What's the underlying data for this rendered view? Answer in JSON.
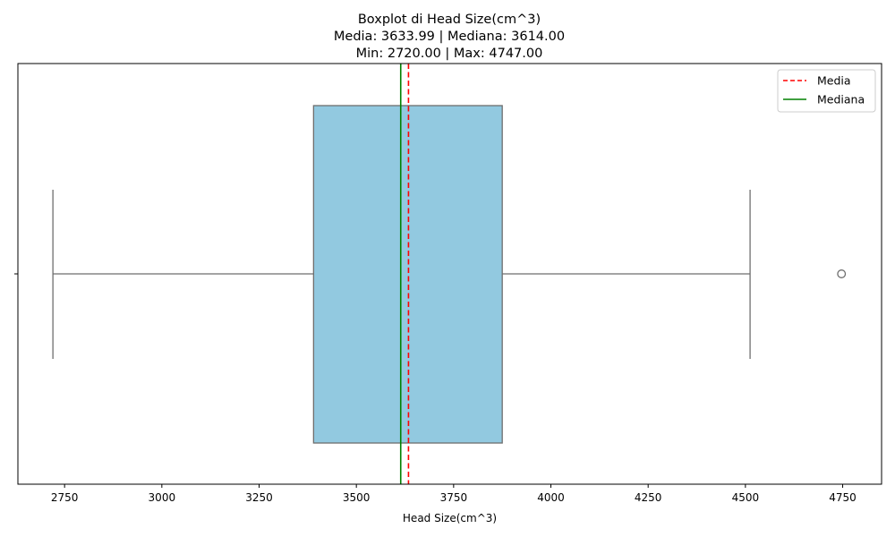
{
  "chart_data": {
    "type": "boxplot",
    "title_lines": [
      "Boxplot di Head Size(cm^3)",
      "Media: 3633.99 | Mediana: 3614.00",
      "Min: 2720.00 | Max: 4747.00"
    ],
    "xlabel": "Head Size(cm^3)",
    "ylabel": "",
    "orientation": "horizontal",
    "xlim": [
      2630,
      4850
    ],
    "xticks": [
      2750,
      3000,
      3250,
      3500,
      3750,
      4000,
      4250,
      4500,
      4750
    ],
    "box": {
      "whisker_low": 2720,
      "q1": 3390,
      "median": 3614,
      "q3": 3875,
      "whisker_high": 4512,
      "outliers": [
        4747
      ]
    },
    "reference_lines": [
      {
        "name": "Media",
        "value": 3633.99,
        "color": "#ff0000",
        "style": "dashed"
      },
      {
        "name": "Mediana",
        "value": 3614.0,
        "color": "#008000",
        "style": "solid"
      }
    ],
    "legend": {
      "position": "top-right",
      "entries": [
        "Media",
        "Mediana"
      ]
    },
    "colors": {
      "box_fill": "#92c9e0",
      "box_edge": "#6e6e6e",
      "mean_line": "#ff0000",
      "median_line": "#008000"
    },
    "grid": false
  }
}
